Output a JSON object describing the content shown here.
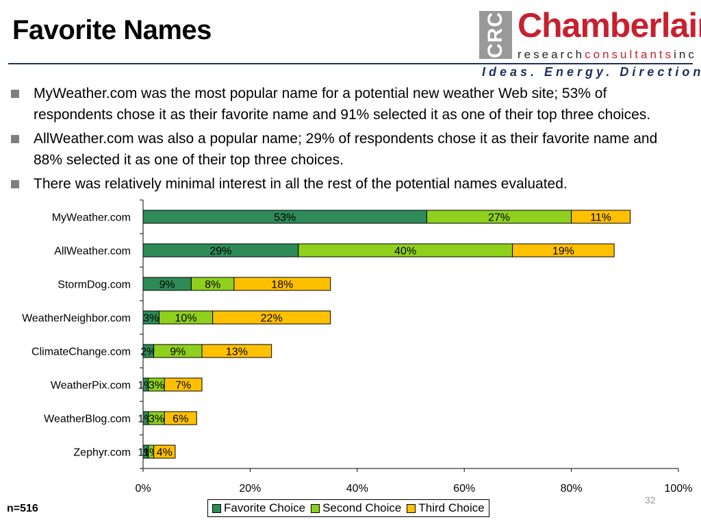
{
  "slide": {
    "title": "Favorite Names",
    "bullets": [
      "MyWeather.com was the most popular name for a potential new weather Web site; 53% of respondents chose it as their favorite name and 91% selected it as one of their top three choices.",
      "AllWeather.com was also a popular name; 29% of respondents chose it as their favorite name and 88% selected it as one of their top three choices.",
      "There was relatively minimal interest in all the rest of the potential names evaluated."
    ],
    "sample_size": "n=516",
    "page_number": "32"
  },
  "logo": {
    "mark": "CRC",
    "name": "Chamberlain",
    "sub_research": "research",
    "sub_consultants": "consultants",
    "sub_inc": "inc",
    "tagline": "Ideas. Energy. Direction."
  },
  "colors": {
    "favorite": "#2e8b57",
    "second": "#8fd01c",
    "third": "#ffc000",
    "rule": "#1d2f5c",
    "brand": "#c8202f"
  },
  "chart_data": {
    "type": "bar",
    "orientation": "horizontal",
    "stacked": true,
    "categories": [
      "MyWeather.com",
      "AllWeather.com",
      "StormDog.com",
      "WeatherNeighbor.com",
      "ClimateChange.com",
      "WeatherPix.com",
      "WeatherBlog.com",
      "Zephyr.com"
    ],
    "series": [
      {
        "name": "Favorite Choice",
        "color": "#2e8b57",
        "values": [
          53,
          29,
          9,
          3,
          2,
          1,
          1,
          1
        ],
        "labels": [
          "53%",
          "29%",
          "9%",
          "3%",
          "2%",
          "1%",
          "1%",
          "1%"
        ]
      },
      {
        "name": "Second Choice",
        "color": "#8fd01c",
        "values": [
          27,
          40,
          8,
          10,
          9,
          3,
          3,
          1
        ],
        "labels": [
          "27%",
          "40%",
          "8%",
          "10%",
          "9%",
          "3%",
          "3%",
          "1%"
        ]
      },
      {
        "name": "Third Choice",
        "color": "#ffc000",
        "values": [
          11,
          19,
          18,
          22,
          13,
          7,
          6,
          4
        ],
        "labels": [
          "11%",
          "19%",
          "18%",
          "22%",
          "13%",
          "7%",
          "6%",
          "4%"
        ]
      }
    ],
    "xlim": [
      0,
      100
    ],
    "x_ticks": [
      "0%",
      "20%",
      "40%",
      "60%",
      "80%",
      "100%"
    ],
    "grid": false,
    "legend_position": "bottom"
  }
}
